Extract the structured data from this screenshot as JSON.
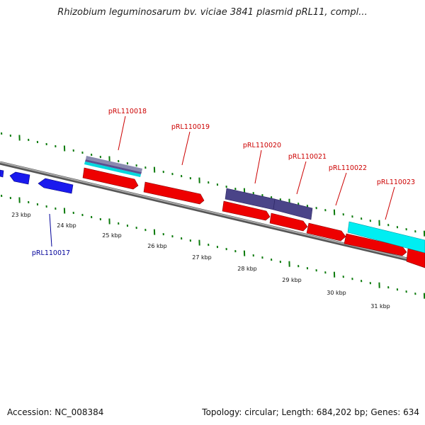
{
  "header": {
    "title": "Rhizobium leguminosarum bv. viciae 3841 plasmid pRL11, compl..."
  },
  "footer": {
    "accession": "Accession: NC_008384",
    "summary": "Topology: circular; Length: 684,202 bp; Genes: 634"
  },
  "colors": {
    "backbone": "#808080",
    "forward_gene": "#ee0000",
    "minus_gene": "#1a1aee",
    "feature_purple": "#5a5090",
    "feature_cyan": "#00e8ee",
    "label_red": "#cc0000",
    "label_blue": "#000099",
    "tick_green": "#0b7a0b"
  },
  "ruler": {
    "labels": [
      "23 kbp",
      "24 kbp",
      "25 kbp",
      "26 kbp",
      "27 kbp",
      "28 kbp",
      "29 kbp",
      "30 kbp",
      "31 kbp"
    ]
  },
  "genes": [
    {
      "id": "pRL110017"
    },
    {
      "id": "pRL110018"
    },
    {
      "id": "pRL110019"
    },
    {
      "id": "pRL110020"
    },
    {
      "id": "pRL110021"
    },
    {
      "id": "pRL110022"
    },
    {
      "id": "pRL110023"
    }
  ]
}
